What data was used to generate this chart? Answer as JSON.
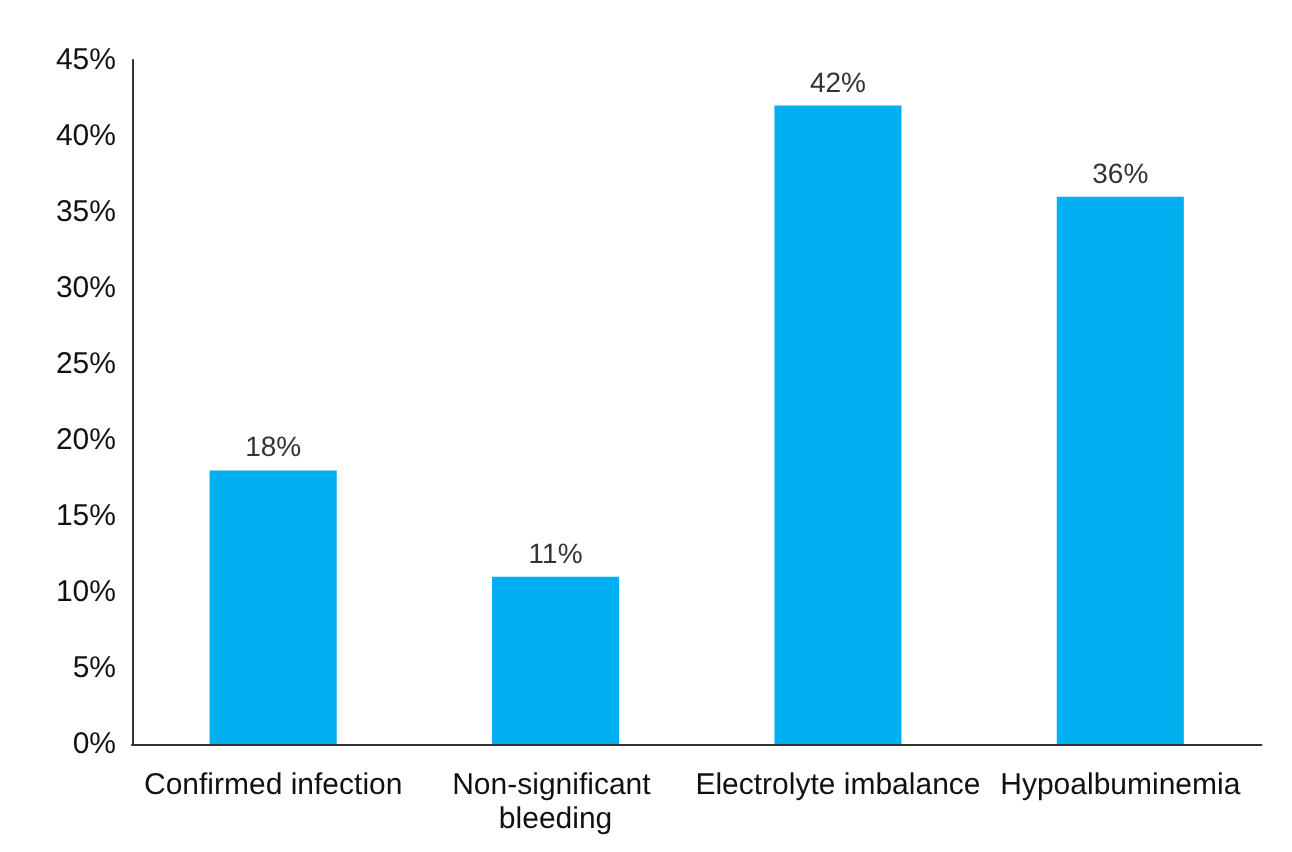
{
  "chart_data": {
    "type": "bar",
    "categories": [
      "Confirmed infection",
      "Non-significant bleeding",
      "Electrolyte imbalance",
      "Hypoalbuminemia"
    ],
    "values": [
      18,
      11,
      42,
      36
    ],
    "color": "#00b0f0",
    "value_labels": [
      "18%",
      "11%",
      "42%",
      "36%"
    ],
    "ylim": [
      0,
      45
    ],
    "yticks": [
      {
        "value": 0,
        "label": "0%"
      },
      {
        "value": 5,
        "label": "5%"
      },
      {
        "value": 10,
        "label": "10%"
      },
      {
        "value": 15,
        "label": "15%"
      },
      {
        "value": 20,
        "label": "20%"
      },
      {
        "value": 25,
        "label": "25%"
      },
      {
        "value": 30,
        "label": "30%"
      },
      {
        "value": 35,
        "label": "35%"
      },
      {
        "value": 40,
        "label": "40%"
      },
      {
        "value": 45,
        "label": "45%"
      }
    ],
    "grid": false
  }
}
